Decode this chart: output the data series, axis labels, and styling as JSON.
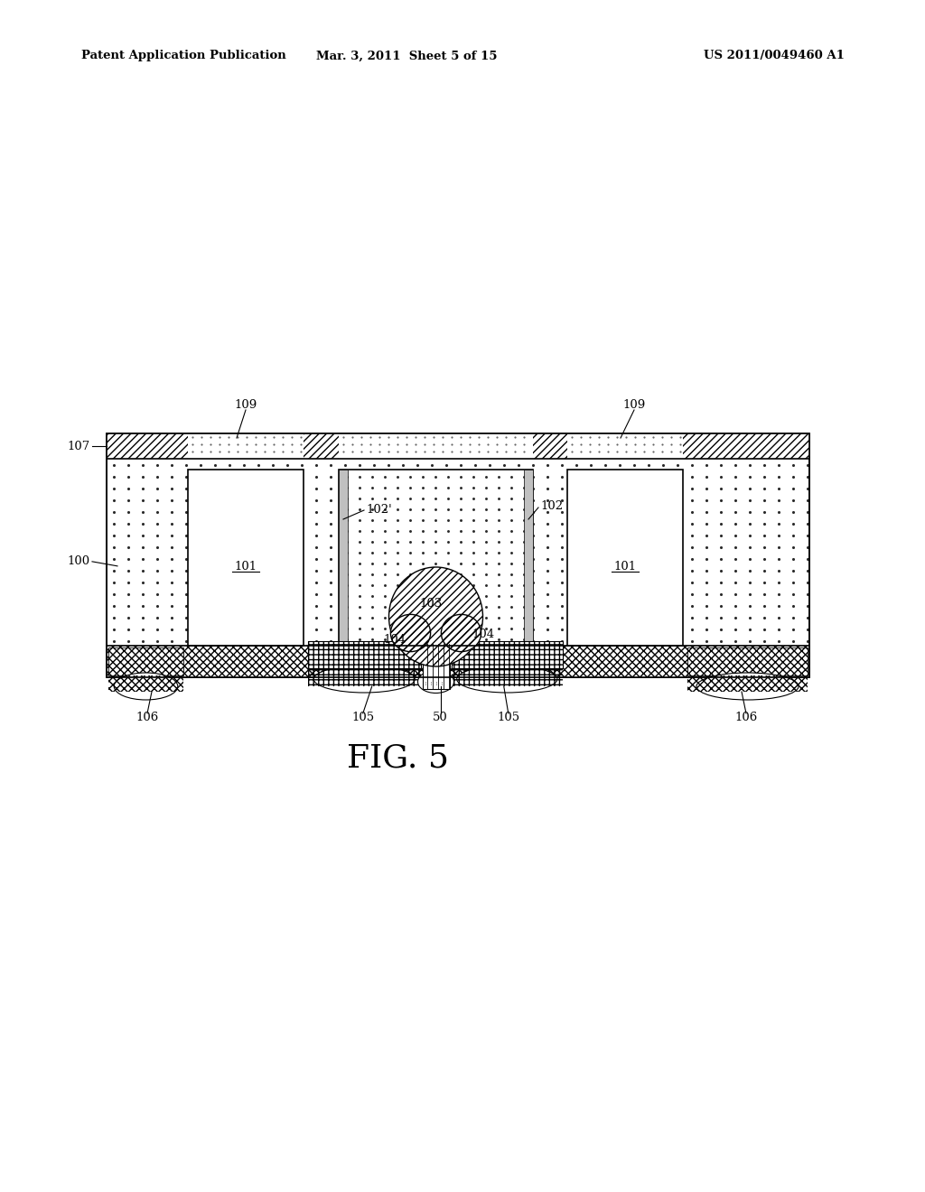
{
  "bg_color": "#ffffff",
  "header_left": "Patent Application Publication",
  "header_center": "Mar. 3, 2011  Sheet 5 of 15",
  "header_right": "US 2011/0049460 A1",
  "fig_label": "FIG. 5"
}
